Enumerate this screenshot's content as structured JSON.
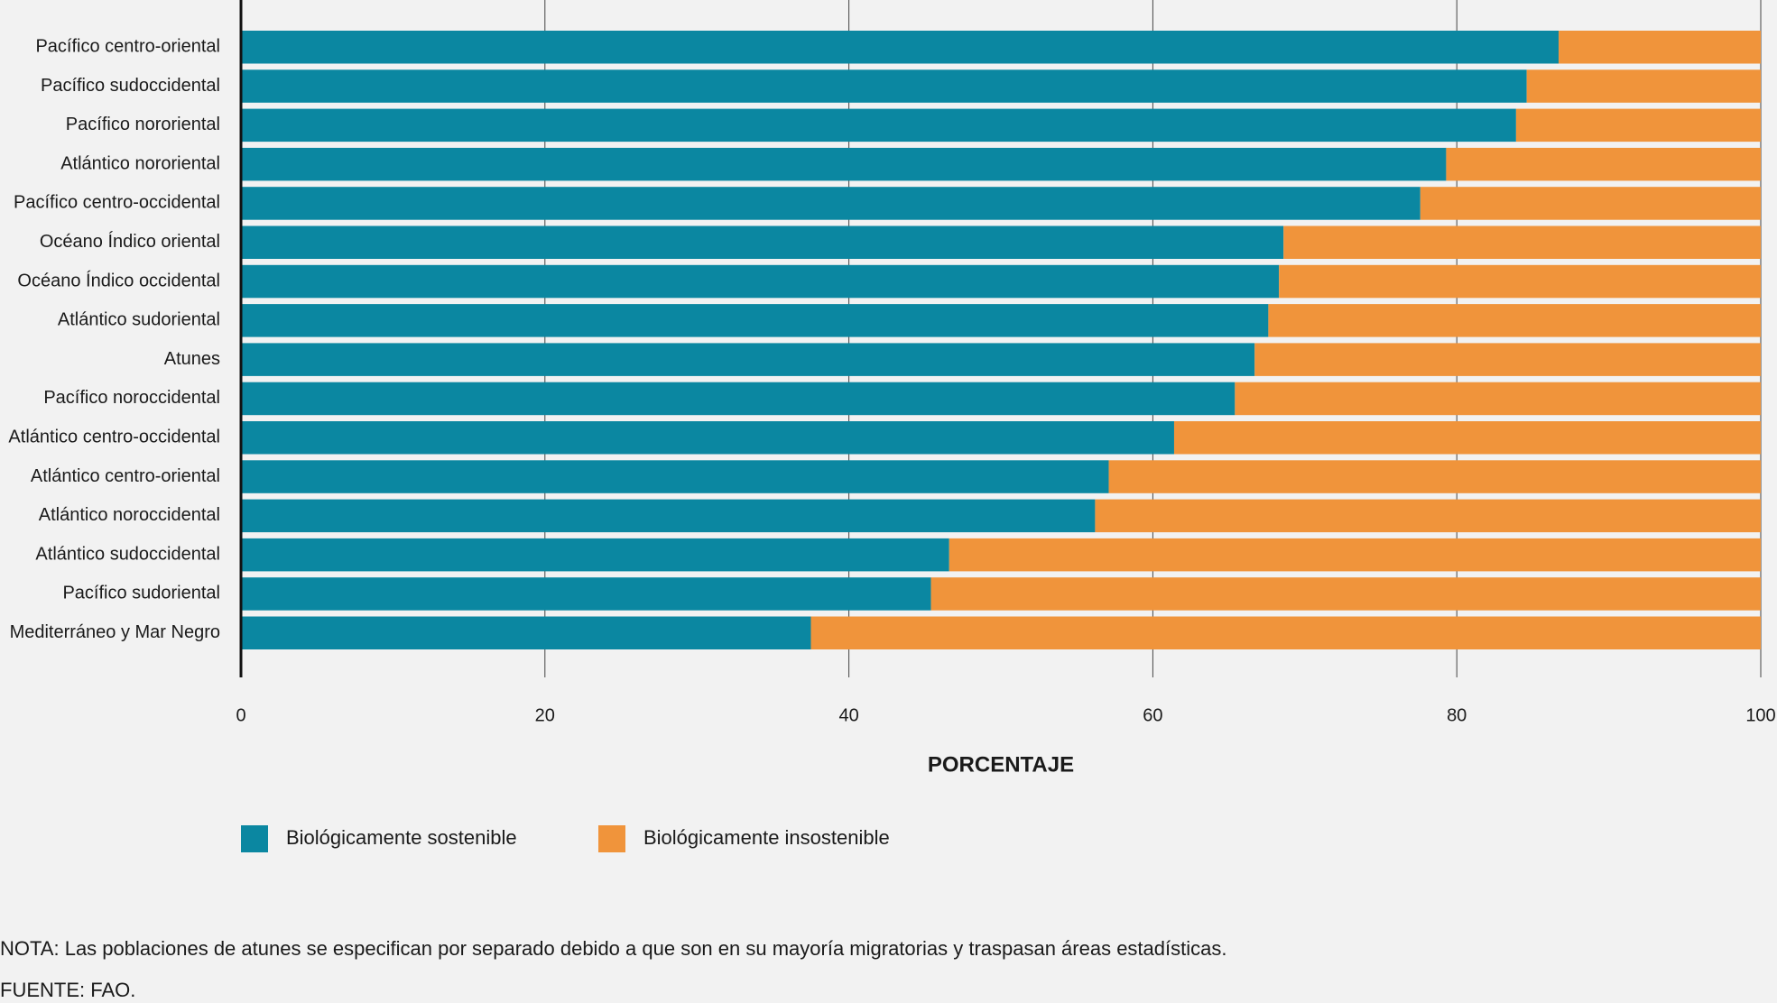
{
  "chart_data": {
    "type": "bar",
    "orientation": "horizontal",
    "stacked": true,
    "categories": [
      "Pacífico centro-oriental",
      "Pacífico sudoccidental",
      "Pacífico nororiental",
      "Atlántico nororiental",
      "Pacífico centro-occidental",
      "Océano Índico oriental",
      "Océano Índico occidental",
      "Atlántico sudoriental",
      "Atunes",
      "Pacífico noroccidental",
      "Atlántico centro-occidental",
      "Atlántico centro-oriental",
      "Atlántico noroccidental",
      "Atlántico sudoccidental",
      "Pacífico sudoriental",
      "Mediterráneo y Mar Negro"
    ],
    "series": [
      {
        "name": "Biológicamente sostenible",
        "color": "#0b87a1",
        "values": [
          86.7,
          84.6,
          83.9,
          79.3,
          77.6,
          68.6,
          68.3,
          67.6,
          66.7,
          65.4,
          61.4,
          57.1,
          56.2,
          46.6,
          45.4,
          37.5
        ]
      },
      {
        "name": "Biológicamente insostenible",
        "color": "#f0943b",
        "values": [
          13.3,
          15.4,
          16.1,
          20.7,
          22.4,
          31.4,
          31.7,
          32.4,
          33.3,
          34.6,
          38.6,
          42.9,
          43.8,
          53.4,
          54.6,
          62.5
        ]
      }
    ],
    "xlim": [
      0,
      100
    ],
    "xticks": [
      0,
      20,
      40,
      60,
      80,
      100
    ],
    "grid": true,
    "xlabel": "PORCENTAJE",
    "note": "NOTA: Las poblaciones de atunes se especifican por separado debido a que son en su mayoría migratorias y traspasan áreas estadísticas.",
    "source": "FUENTE: FAO."
  }
}
